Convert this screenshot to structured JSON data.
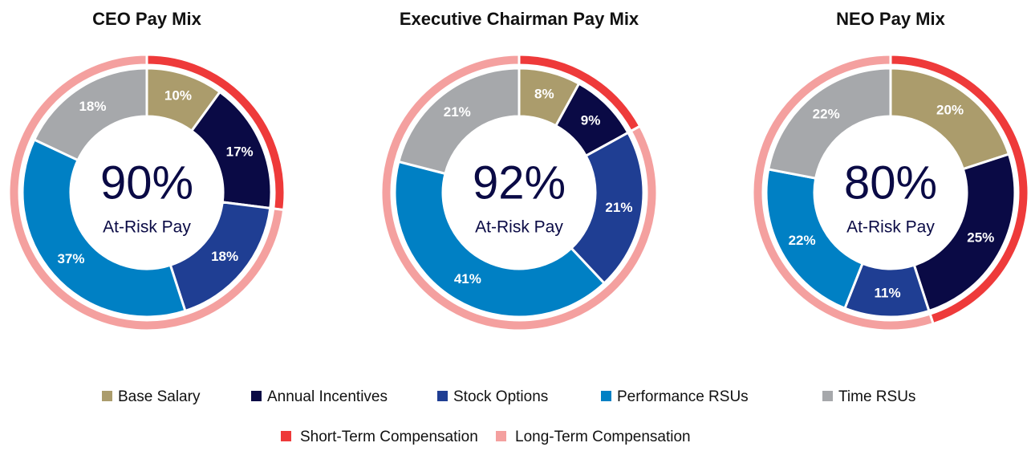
{
  "legend": {
    "categories": [
      "Base Salary",
      "Annual Incentives",
      "Stock Options",
      "Performance RSUs",
      "Time RSUs"
    ],
    "colors": [
      "#ab9c6c",
      "#0a0a45",
      "#1f3e93",
      "#0080c4",
      "#a6a8ab"
    ],
    "ring_categories": [
      "Short-Term Compensation",
      "Long-Term Compensation"
    ],
    "ring_colors": [
      "#ee3a3a",
      "#f4a09f"
    ]
  },
  "chart_data": [
    {
      "type": "pie",
      "title": "CEO Pay Mix",
      "center_value": {
        "value": 90,
        "label": "90%"
      },
      "center_subtitle": "At-Risk Pay",
      "values": [
        10,
        17,
        18,
        37,
        18
      ],
      "value_labels": [
        "10%",
        "17%",
        "18%",
        "37%",
        "18%"
      ],
      "ring_values": [
        27,
        73
      ]
    },
    {
      "type": "pie",
      "title": "Executive Chairman Pay Mix",
      "center_value": {
        "value": 92,
        "label": "92%"
      },
      "center_subtitle": "At-Risk Pay",
      "values": [
        8,
        9,
        21,
        41,
        21
      ],
      "value_labels": [
        "8%",
        "9%",
        "21%",
        "41%",
        "21%"
      ],
      "ring_values": [
        17,
        83
      ]
    },
    {
      "type": "pie",
      "title": "NEO Pay Mix",
      "center_value": {
        "value": 80,
        "label": "80%"
      },
      "center_subtitle": "At-Risk Pay",
      "values": [
        20,
        25,
        11,
        22,
        22
      ],
      "value_labels": [
        "20%",
        "25%",
        "11%",
        "22%",
        "22%"
      ],
      "ring_values": [
        45,
        55
      ]
    }
  ]
}
